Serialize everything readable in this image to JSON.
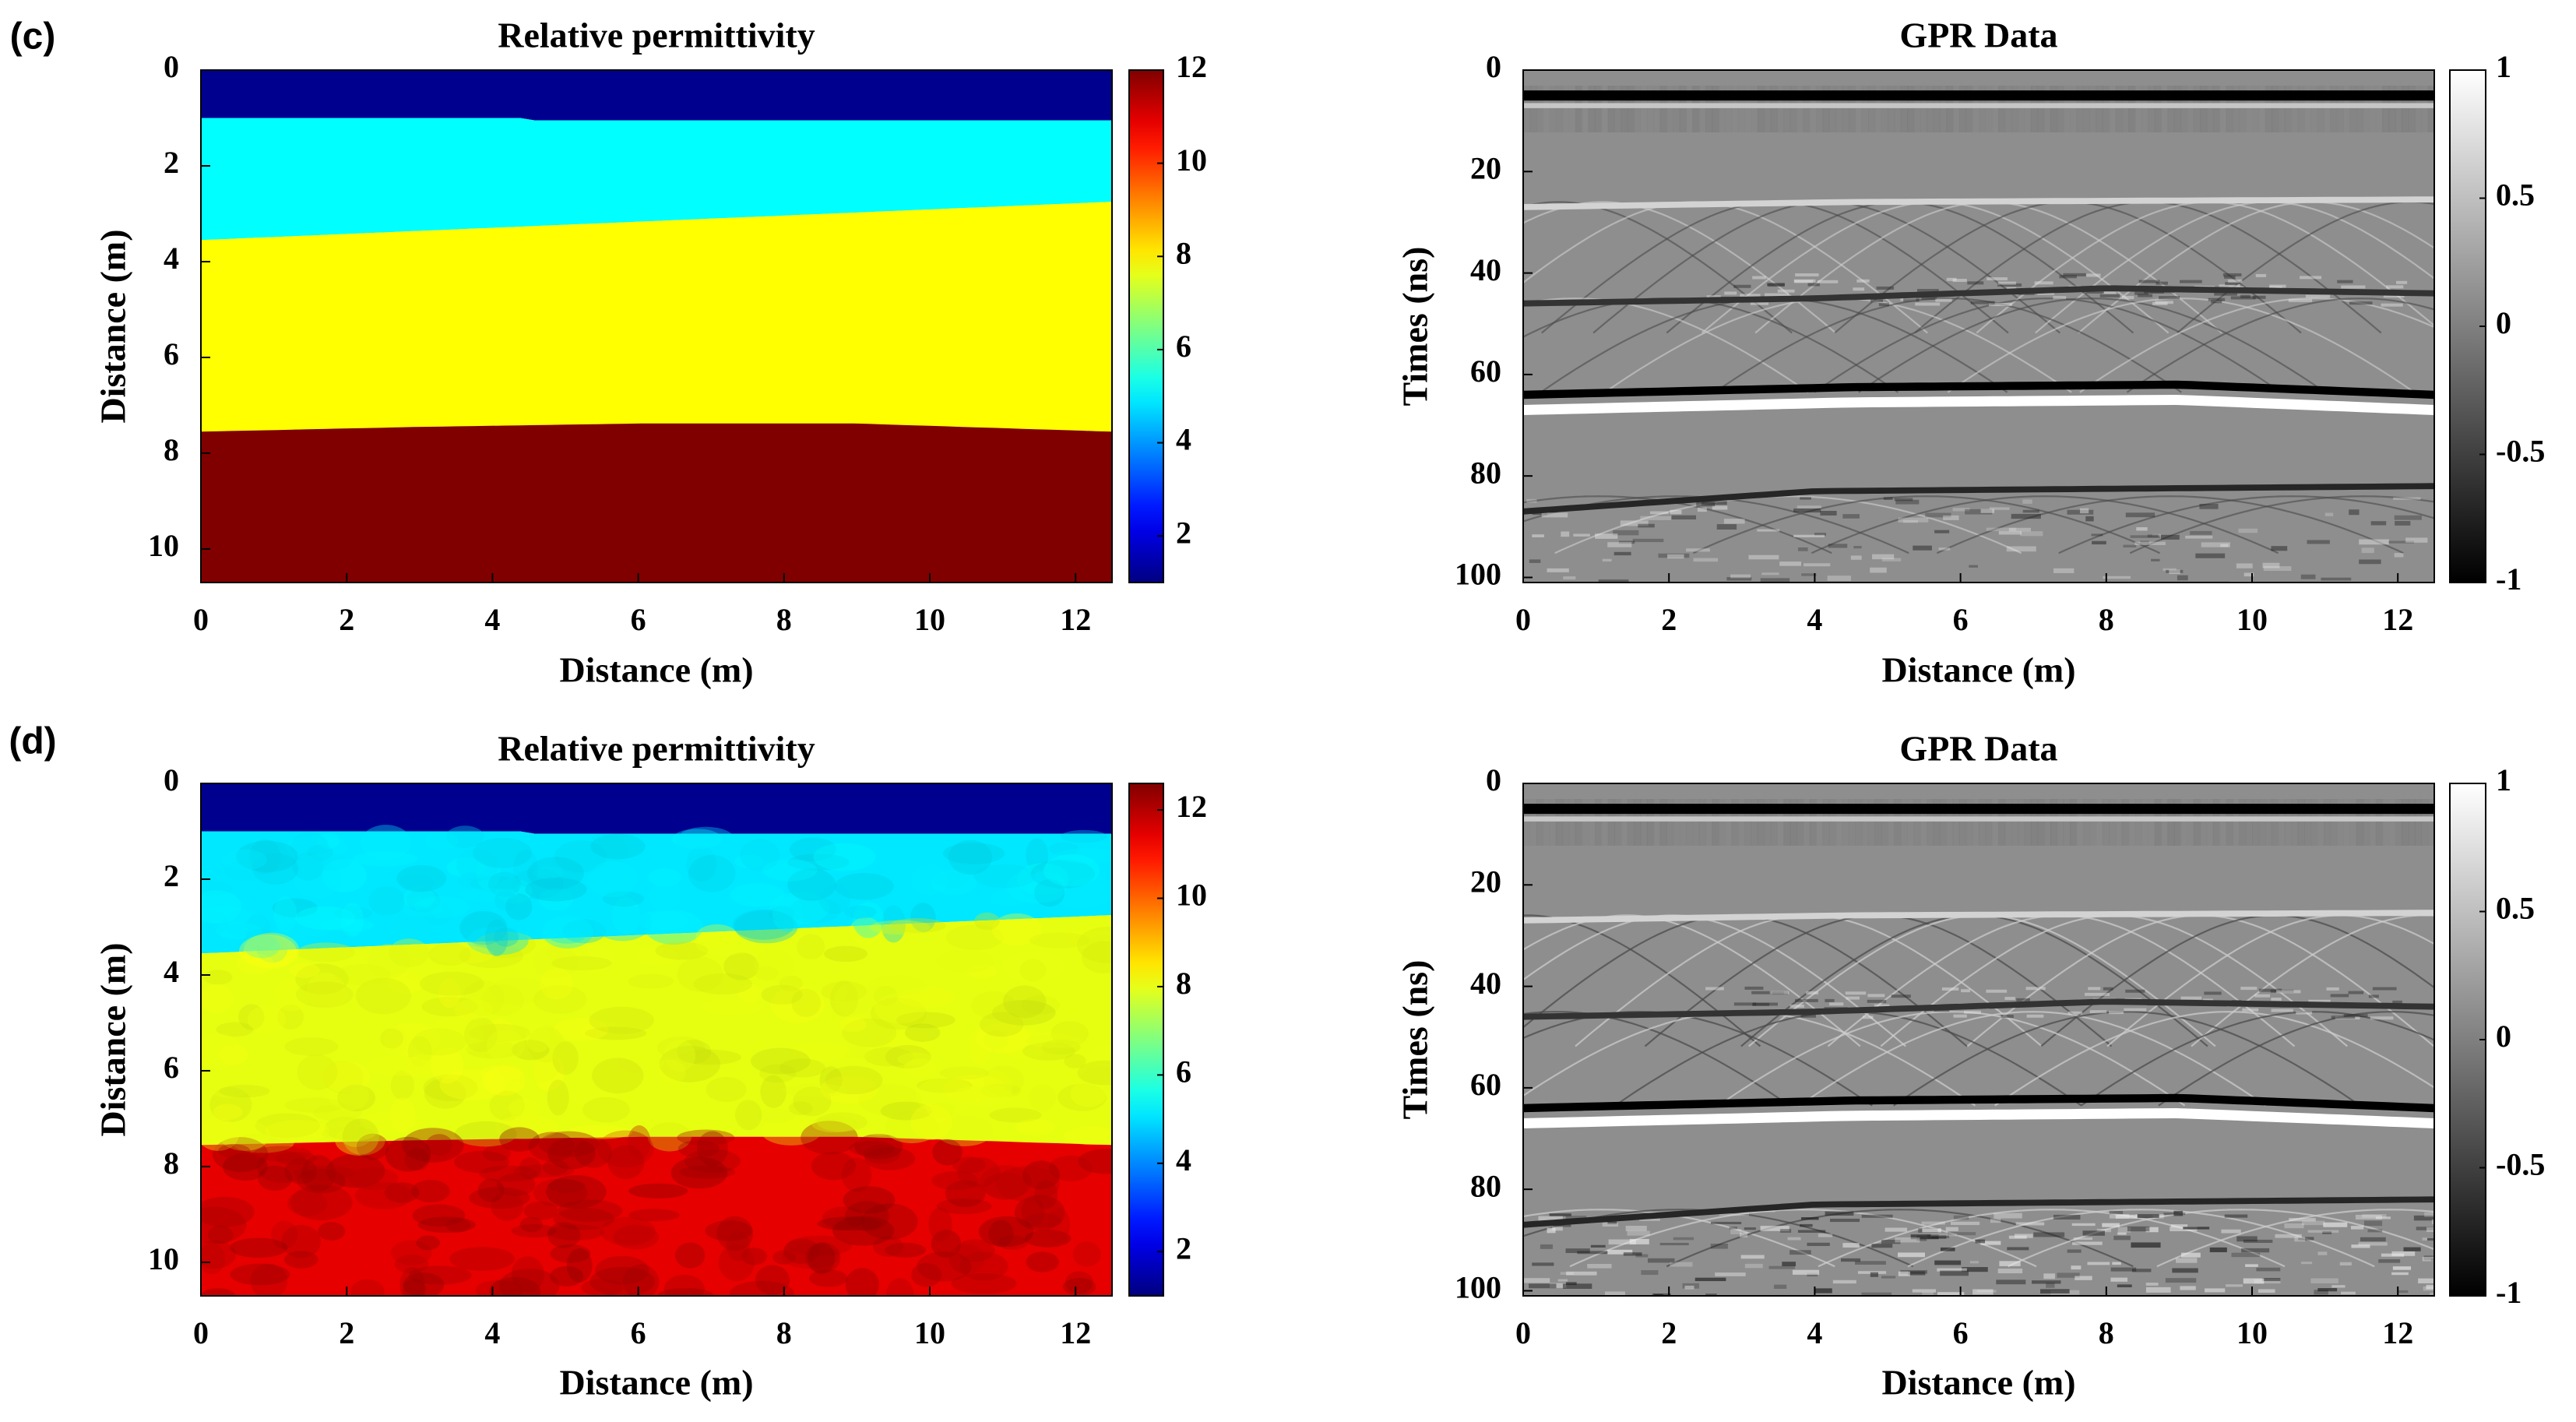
{
  "chart_data": [
    {
      "panel": "(c)",
      "type": "heatmap",
      "title": "Relative permittivity",
      "xlabel": "Distance (m)",
      "ylabel": "Distance (m)",
      "xlim": [
        0,
        12.5
      ],
      "ylim": [
        0,
        10.7
      ],
      "xticks": [
        "0",
        "2",
        "4",
        "6",
        "8",
        "10",
        "12"
      ],
      "yticks": [
        "0",
        "2",
        "4",
        "6",
        "8",
        "10"
      ],
      "colorbar": {
        "colormap": "jet",
        "range": [
          1,
          12
        ],
        "ticks": [
          "2",
          "4",
          "6",
          "8",
          "10",
          "12"
        ]
      },
      "noisy": false,
      "layers": [
        {
          "permittivity": 1,
          "color": "#00008f",
          "top": [
            [
              0,
              0
            ],
            [
              12.5,
              0
            ]
          ]
        },
        {
          "permittivity": 5,
          "color": "#00ffff",
          "top": [
            [
              0,
              1.0
            ],
            [
              4.4,
              1.0
            ],
            [
              4.5,
              1.05
            ],
            [
              12.5,
              1.05
            ]
          ]
        },
        {
          "permittivity": 8,
          "color": "#ffff00",
          "top": [
            [
              0,
              3.55
            ],
            [
              12.5,
              2.75
            ]
          ]
        },
        {
          "permittivity": 12,
          "color": "#800000",
          "top": [
            [
              0,
              7.55
            ],
            [
              3,
              7.45
            ],
            [
              6,
              7.38
            ],
            [
              9,
              7.38
            ],
            [
              12.5,
              7.55
            ]
          ]
        }
      ]
    },
    {
      "panel": "",
      "type": "heatmap",
      "title": "GPR Data",
      "xlabel": "Distance (m)",
      "ylabel": "Times (ns)",
      "xlim": [
        0,
        12.5
      ],
      "ylim": [
        0,
        101
      ],
      "xticks": [
        "0",
        "2",
        "4",
        "6",
        "8",
        "10",
        "12"
      ],
      "yticks": [
        "0",
        "20",
        "40",
        "60",
        "80",
        "100"
      ],
      "colorbar": {
        "colormap": "gray",
        "range": [
          -1,
          1
        ],
        "ticks": [
          "1",
          "0.5",
          "0",
          "-0.5",
          "-1"
        ]
      },
      "clutter": 0.5,
      "reflections": [
        {
          "polarity": -1,
          "width": 2.0,
          "strength": 1.0,
          "t": [
            [
              0,
              5
            ],
            [
              12.5,
              5
            ]
          ]
        },
        {
          "polarity": 1,
          "width": 1.0,
          "strength": 0.55,
          "t": [
            [
              0,
              7
            ],
            [
              12.5,
              7
            ]
          ]
        },
        {
          "polarity": 1,
          "width": 1.2,
          "strength": 0.65,
          "t": [
            [
              0,
              27
            ],
            [
              4.5,
              26
            ],
            [
              12.5,
              25.5
            ]
          ]
        },
        {
          "polarity": -1,
          "width": 1.2,
          "strength": 0.6,
          "t": [
            [
              0,
              46
            ],
            [
              4,
              45
            ],
            [
              8,
              43
            ],
            [
              12.5,
              44
            ]
          ]
        },
        {
          "polarity": -1,
          "width": 1.6,
          "strength": 1.0,
          "t": [
            [
              0,
              64
            ],
            [
              4.5,
              62.5
            ],
            [
              9,
              62
            ],
            [
              12.5,
              64
            ]
          ]
        },
        {
          "polarity": 1,
          "width": 2.0,
          "strength": 1.0,
          "t": [
            [
              0,
              67
            ],
            [
              4.5,
              65.5
            ],
            [
              9,
              65
            ],
            [
              12.5,
              67
            ]
          ]
        },
        {
          "polarity": -1,
          "width": 1.2,
          "strength": 0.7,
          "t": [
            [
              0,
              87
            ],
            [
              2,
              85
            ],
            [
              4,
              83
            ],
            [
              12.5,
              82
            ]
          ]
        }
      ]
    },
    {
      "panel": "(d)",
      "type": "heatmap",
      "title": "Relative permittivity",
      "xlabel": "Distance (m)",
      "ylabel": "Distance (m)",
      "xlim": [
        0,
        12.5
      ],
      "ylim": [
        0,
        10.7
      ],
      "xticks": [
        "0",
        "2",
        "4",
        "6",
        "8",
        "10",
        "12"
      ],
      "yticks": [
        "0",
        "2",
        "4",
        "6",
        "8",
        "10"
      ],
      "colorbar": {
        "colormap": "jet",
        "range": [
          1,
          12.6
        ],
        "ticks": [
          "2",
          "4",
          "6",
          "8",
          "10",
          "12"
        ]
      },
      "noisy": true,
      "layers": [
        {
          "permittivity": 1,
          "color": "#00008f",
          "top": [
            [
              0,
              0
            ],
            [
              12.5,
              0
            ]
          ]
        },
        {
          "permittivity": 5,
          "color": "#00e8ff",
          "top": [
            [
              0,
              1.0
            ],
            [
              4.4,
              1.0
            ],
            [
              4.5,
              1.05
            ],
            [
              12.5,
              1.05
            ]
          ]
        },
        {
          "permittivity": 8,
          "color": "#e6ff10",
          "top": [
            [
              0,
              3.55
            ],
            [
              12.5,
              2.75
            ]
          ]
        },
        {
          "permittivity": 12,
          "color": "#e60000",
          "top": [
            [
              0,
              7.55
            ],
            [
              3,
              7.45
            ],
            [
              6,
              7.38
            ],
            [
              9,
              7.38
            ],
            [
              12.5,
              7.55
            ]
          ]
        }
      ]
    },
    {
      "panel": "",
      "type": "heatmap",
      "title": "GPR Data",
      "xlabel": "Distance (m)",
      "ylabel": "Times (ns)",
      "xlim": [
        0,
        12.5
      ],
      "ylim": [
        0,
        101
      ],
      "xticks": [
        "0",
        "2",
        "4",
        "6",
        "8",
        "10",
        "12"
      ],
      "yticks": [
        "0",
        "20",
        "40",
        "60",
        "80",
        "100"
      ],
      "colorbar": {
        "colormap": "gray",
        "range": [
          -1,
          1
        ],
        "ticks": [
          "1",
          "0.5",
          "0",
          "-0.5",
          "-1"
        ]
      },
      "clutter": 0.9,
      "reflections": [
        {
          "polarity": -1,
          "width": 2.0,
          "strength": 1.0,
          "t": [
            [
              0,
              5
            ],
            [
              12.5,
              5
            ]
          ]
        },
        {
          "polarity": 1,
          "width": 1.0,
          "strength": 0.55,
          "t": [
            [
              0,
              7
            ],
            [
              12.5,
              7
            ]
          ]
        },
        {
          "polarity": 1,
          "width": 1.2,
          "strength": 0.65,
          "t": [
            [
              0,
              27
            ],
            [
              4.5,
              26
            ],
            [
              12.5,
              25.5
            ]
          ]
        },
        {
          "polarity": -1,
          "width": 1.2,
          "strength": 0.6,
          "t": [
            [
              0,
              46
            ],
            [
              4,
              45
            ],
            [
              8,
              43
            ],
            [
              12.5,
              44
            ]
          ]
        },
        {
          "polarity": -1,
          "width": 1.6,
          "strength": 1.0,
          "t": [
            [
              0,
              64
            ],
            [
              4.5,
              62.5
            ],
            [
              9,
              62
            ],
            [
              12.5,
              64
            ]
          ]
        },
        {
          "polarity": 1,
          "width": 2.0,
          "strength": 1.0,
          "t": [
            [
              0,
              67
            ],
            [
              4.5,
              65.5
            ],
            [
              9,
              65
            ],
            [
              12.5,
              67
            ]
          ]
        },
        {
          "polarity": -1,
          "width": 1.2,
          "strength": 0.7,
          "t": [
            [
              0,
              87
            ],
            [
              2,
              85
            ],
            [
              4,
              83
            ],
            [
              12.5,
              82
            ]
          ]
        }
      ]
    }
  ]
}
